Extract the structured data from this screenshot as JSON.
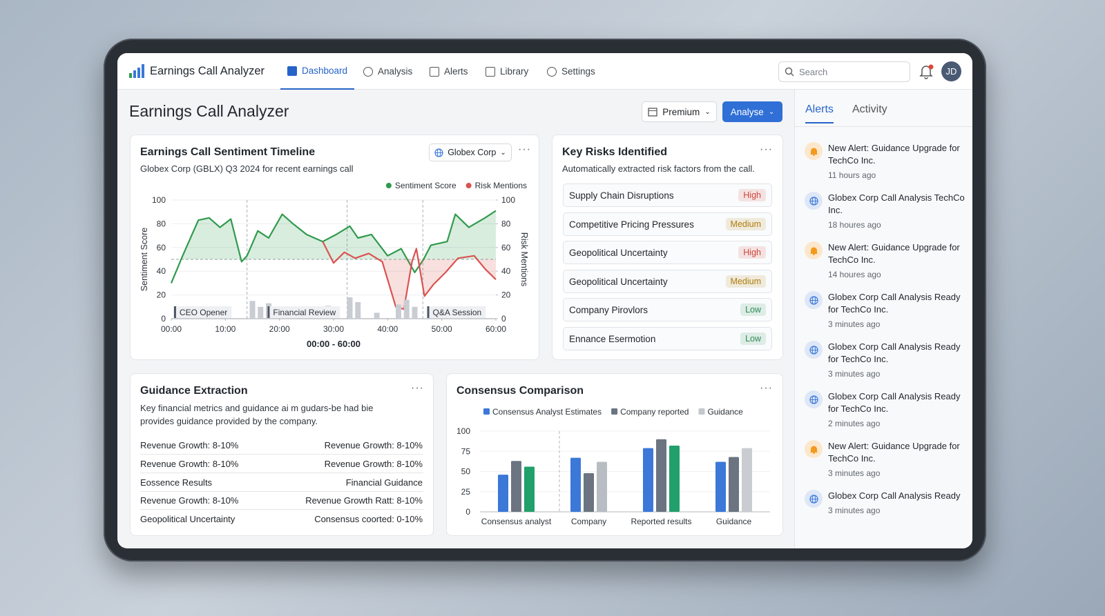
{
  "app": {
    "title": "Earnings Call Analyzer",
    "nav": [
      "Dashboard",
      "Analysis",
      "Alerts",
      "Library",
      "Settings"
    ],
    "active_nav": 0,
    "search_placeholder": "Search",
    "avatar": "JD"
  },
  "header": {
    "title": "Earnings Call Analyzer",
    "buttons": [
      "Premium",
      "Analyse"
    ]
  },
  "chart_data": [
    {
      "type": "line",
      "title": "Earnings Call Sentiment Timeline",
      "subtitle": "Globex Corp (GBLX) Q3 2024 for recent earnings call",
      "filter": "Globex Corp",
      "xlabel": "00:00 - 60:00",
      "ylabel": "Sentiment Score",
      "y2label": "Risk Mentions",
      "xlim": [
        0,
        60
      ],
      "xticks": [
        {
          "value": 0,
          "label": "00:00"
        },
        {
          "value": 10,
          "label": "10:00"
        },
        {
          "value": 20,
          "label": "20:00"
        },
        {
          "value": 30,
          "label": "30:00"
        },
        {
          "value": 40,
          "label": "40:00"
        },
        {
          "value": 50,
          "label": "50:00"
        },
        {
          "value": 60,
          "label": "60:00"
        }
      ],
      "ylim": [
        0,
        100
      ],
      "yticks": [
        0,
        20,
        40,
        60,
        80,
        100
      ],
      "y2lim": [
        0,
        100
      ],
      "y2ticks": [
        0,
        20,
        40,
        60,
        80,
        100
      ],
      "grid": true,
      "legend": "top-right",
      "reference_line": 50,
      "markers": [
        14,
        32.5,
        46.5
      ],
      "series": [
        {
          "name": "Sentiment Score",
          "color": "#2f9a4c",
          "x": [
            0,
            2,
            5,
            7,
            9,
            11,
            13,
            14,
            16,
            18,
            20.5,
            22.5,
            25,
            28,
            30.5,
            33,
            34.5,
            37,
            40,
            42.5,
            45,
            46.5,
            48,
            51,
            52.5,
            55,
            58,
            60
          ],
          "values": [
            30,
            52,
            83,
            85,
            77,
            84,
            48,
            53,
            74,
            68,
            88,
            80,
            71,
            65,
            71,
            78,
            68,
            71,
            53,
            59,
            39,
            49,
            62,
            65,
            88,
            77,
            85,
            91
          ]
        },
        {
          "name": "Risk Mentions",
          "color": "#d9534f",
          "axis": "y2",
          "x": [
            28,
            30,
            32,
            34,
            36.5,
            39,
            41.5,
            43,
            44.5,
            45.3,
            46.8,
            48.5,
            50.7,
            53,
            56,
            58,
            60
          ],
          "values": [
            65,
            47,
            56,
            51,
            55,
            48,
            10,
            8,
            48,
            59,
            19,
            29,
            39,
            51,
            53,
            42,
            33
          ]
        },
        {
          "type": "bar",
          "color": "#c9cdd3",
          "axis": "y2",
          "x": [
            1,
            3,
            5,
            7,
            9,
            15,
            16.5,
            18,
            24,
            26,
            29,
            33,
            34.5,
            38,
            42,
            43.5,
            45,
            50,
            55
          ],
          "values": [
            9,
            4,
            3,
            4,
            7,
            15,
            10,
            13,
            5,
            7,
            11,
            18,
            14,
            5,
            12,
            16,
            10,
            6,
            5
          ]
        }
      ],
      "annotations": [
        {
          "x": 0.5,
          "text": "CEO Opener"
        },
        {
          "x": 17.8,
          "text": "Financial Review"
        },
        {
          "x": 47.3,
          "text": "Q&A Session"
        }
      ]
    },
    {
      "type": "bar",
      "title": "Consensus Comparison",
      "legend": "top",
      "categories": [
        "Consensus analyst",
        "Company",
        "Reported results",
        "Guidance"
      ],
      "ylim": [
        0,
        100
      ],
      "yticks": [
        0,
        25,
        50,
        75,
        100
      ],
      "series": [
        {
          "name": "Consensus Analyst Estimates",
          "color": "#3b78d8",
          "values": [
            46,
            67,
            79,
            62
          ]
        },
        {
          "name": "Company reported",
          "color": "#6b7480",
          "values": [
            63,
            48,
            90,
            68
          ]
        },
        {
          "name": "Guidance",
          "color": "#c3c7cd",
          "colors": [
            "#22a06b",
            "#b8bcc3",
            "#22a06b",
            "#c9ccd1"
          ],
          "values": [
            56,
            62,
            82,
            79
          ]
        }
      ]
    }
  ],
  "risks": {
    "title": "Key Risks Identified",
    "subtitle": "Automatically extracted risk factors from the call.",
    "items": [
      {
        "label": "Supply Chain Disruptions",
        "level": "High",
        "color": "#d0463c"
      },
      {
        "label": "Competitive Pricing Pressures",
        "level": "Medium",
        "color": "#b07d0c"
      },
      {
        "label": "Geopolitical Uncertainty",
        "level": "High",
        "color": "#d0463c"
      },
      {
        "label": "Geopolitical Uncertainty",
        "level": "Medium",
        "color": "#b07d0c"
      },
      {
        "label": "Company Pirovlors",
        "level": "Low",
        "color": "#2e8b57"
      },
      {
        "label": "Ennance Esermotion",
        "level": "Low",
        "color": "#2e8b57"
      }
    ]
  },
  "guidance": {
    "title": "Guidance Extraction",
    "description": "Key financial metrics and guidance ai m gudars-be had bie provides guidance provided by the company.",
    "rows": [
      [
        "Revenue Growth: 8-10%",
        "Revenue Growth: 8-10%"
      ],
      [
        "Revenue Growth: 8-10%",
        "Revenue Growth: 8-10%"
      ],
      [
        "Eossence Results",
        "Financial Guidance"
      ],
      [
        "Revenue Growth: 8-10%",
        "Revenue Growth Ratt: 8-10%"
      ],
      [
        "Geopolitical Uncertainty",
        "Consensus coorted: 0-10%"
      ]
    ]
  },
  "side_panel": {
    "tabs": [
      "Alerts",
      "Activity"
    ],
    "active_tab": 0,
    "alerts": [
      {
        "icon": "bell",
        "title": "New Alert: Guidance Upgrade for TechCo Inc.",
        "time": "11 hours ago"
      },
      {
        "icon": "globe",
        "title": "Globex Corp Call Analysis TechCo Inc.",
        "time": "18 houres ago"
      },
      {
        "icon": "bell",
        "title": "New Alert: Guidance Upgrade for TechCo Inc.",
        "time": "14 houres ago"
      },
      {
        "icon": "globe",
        "title": "Globex Corp Call Analysis Ready for TechCo Inc.",
        "time": "3 minutes ago"
      },
      {
        "icon": "globe",
        "title": "Globex Corp Call Analysis Ready for TechCo Inc.",
        "time": "3 minutes ago"
      },
      {
        "icon": "globe",
        "title": "Globex Corp Call Analysis Ready for TechCo Inc.",
        "time": "2 minutes ago"
      },
      {
        "icon": "bell",
        "title": "New Alert: Guidance Upgrade for TechCo Inc.",
        "time": "3 minutes ago"
      },
      {
        "icon": "globe",
        "title": "Globex Corp Call Analysis Ready",
        "time": "3 minutes ago"
      }
    ]
  }
}
